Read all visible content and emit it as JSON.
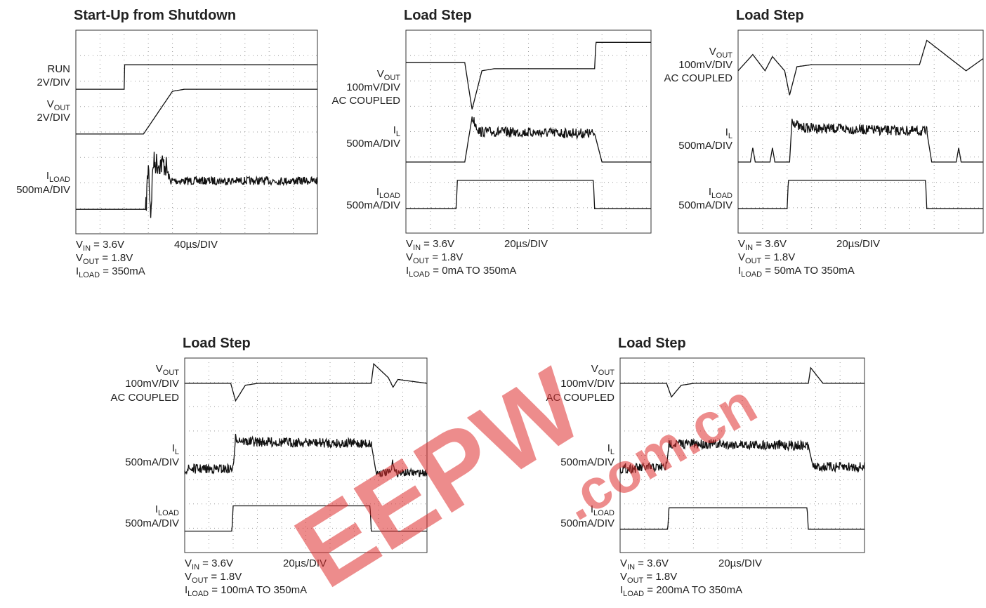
{
  "panels": [
    {
      "title": "Start-Up from Shutdown",
      "channels": [
        {
          "lines": [
            {
              "text": "RUN"
            },
            {
              "text": "2V/DIV"
            }
          ]
        },
        {
          "lines": [
            {
              "text": "V",
              "sub": "OUT"
            },
            {
              "text": "2V/DIV"
            }
          ]
        },
        {
          "lines": [
            {
              "text": "I",
              "sub": "LOAD"
            },
            {
              "text": "500mA/DIV"
            }
          ]
        }
      ],
      "footer": [
        {
          "text": "V",
          "sub": "IN",
          "after": " = 3.6V"
        },
        {
          "text": "V",
          "sub": "OUT",
          "after": " = 1.8V"
        },
        {
          "text": "I",
          "sub": "LOAD",
          "after": " = 350mA"
        }
      ],
      "timebase": "40µs/DIV"
    },
    {
      "title": "Load Step",
      "channels": [
        {
          "lines": [
            {
              "text": "V",
              "sub": "OUT"
            },
            {
              "text": "100mV/DIV"
            },
            {
              "text": "AC COUPLED"
            }
          ]
        },
        {
          "lines": [
            {
              "text": "I",
              "sub": "L"
            },
            {
              "text": "500mA/DIV"
            }
          ]
        },
        {
          "lines": [
            {
              "text": "I",
              "sub": "LOAD"
            },
            {
              "text": "500mA/DIV"
            }
          ]
        }
      ],
      "footer": [
        {
          "text": "V",
          "sub": "IN",
          "after": " = 3.6V"
        },
        {
          "text": "V",
          "sub": "OUT",
          "after": " = 1.8V"
        },
        {
          "text": "I",
          "sub": "LOAD",
          "after": " = 0mA TO 350mA"
        }
      ],
      "timebase": "20µs/DIV"
    },
    {
      "title": "Load Step",
      "channels": [
        {
          "lines": [
            {
              "text": "V",
              "sub": "OUT"
            },
            {
              "text": "100mV/DIV"
            },
            {
              "text": "AC COUPLED"
            }
          ]
        },
        {
          "lines": [
            {
              "text": "I",
              "sub": "L"
            },
            {
              "text": "500mA/DIV"
            }
          ]
        },
        {
          "lines": [
            {
              "text": "I",
              "sub": "LOAD"
            },
            {
              "text": "500mA/DIV"
            }
          ]
        }
      ],
      "footer": [
        {
          "text": "V",
          "sub": "IN",
          "after": " = 3.6V"
        },
        {
          "text": "V",
          "sub": "OUT",
          "after": " = 1.8V"
        },
        {
          "text": "I",
          "sub": "LOAD",
          "after": " = 50mA TO 350mA"
        }
      ],
      "timebase": "20µs/DIV"
    },
    {
      "title": "Load Step",
      "channels": [
        {
          "lines": [
            {
              "text": "V",
              "sub": "OUT"
            },
            {
              "text": "100mV/DIV"
            },
            {
              "text": "AC COUPLED"
            }
          ]
        },
        {
          "lines": [
            {
              "text": "I",
              "sub": "L"
            },
            {
              "text": "500mA/DIV"
            }
          ]
        },
        {
          "lines": [
            {
              "text": "I",
              "sub": "LOAD"
            },
            {
              "text": "500mA/DIV"
            }
          ]
        }
      ],
      "footer": [
        {
          "text": "V",
          "sub": "IN",
          "after": " = 3.6V"
        },
        {
          "text": "V",
          "sub": "OUT",
          "after": " = 1.8V"
        },
        {
          "text": "I",
          "sub": "LOAD",
          "after": " = 100mA TO 350mA"
        }
      ],
      "timebase": "20µs/DIV"
    },
    {
      "title": "Load Step",
      "channels": [
        {
          "lines": [
            {
              "text": "V",
              "sub": "OUT"
            },
            {
              "text": "100mV/DIV"
            },
            {
              "text": "AC COUPLED"
            }
          ]
        },
        {
          "lines": [
            {
              "text": "I",
              "sub": "L"
            },
            {
              "text": "500mA/DIV"
            }
          ]
        },
        {
          "lines": [
            {
              "text": "I",
              "sub": "LOAD"
            },
            {
              "text": "500mA/DIV"
            }
          ]
        }
      ],
      "footer": [
        {
          "text": "V",
          "sub": "IN",
          "after": " = 3.6V"
        },
        {
          "text": "V",
          "sub": "OUT",
          "after": " = 1.8V"
        },
        {
          "text": "I",
          "sub": "LOAD",
          "after": " = 200mA TO 350mA"
        }
      ],
      "timebase": "20µs/DIV"
    }
  ],
  "watermark": {
    "logo": "EEPW",
    "domain": ".com.cn"
  }
}
